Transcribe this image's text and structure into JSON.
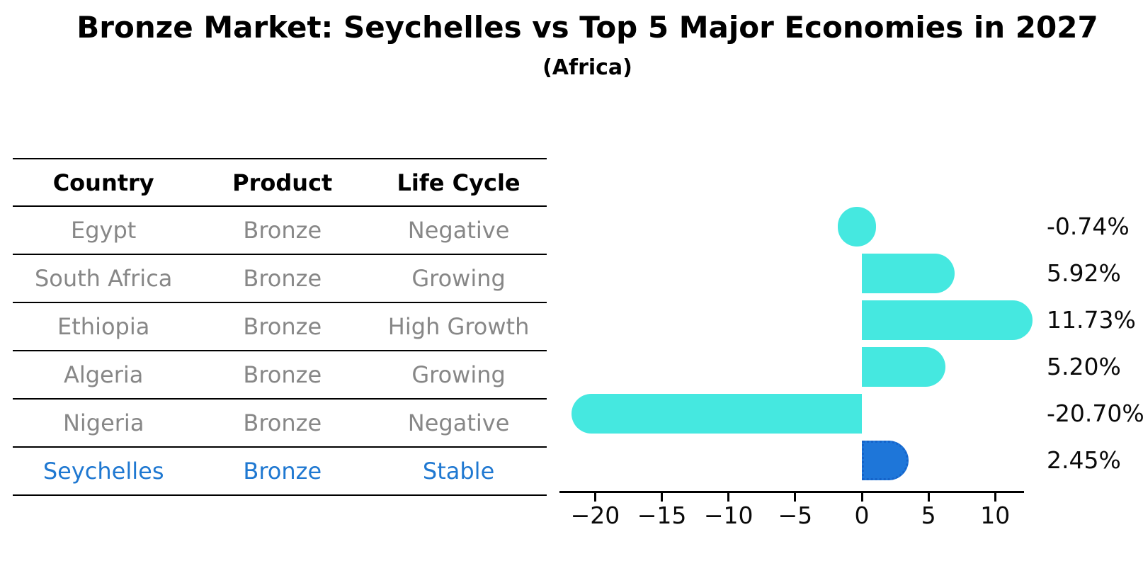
{
  "chart_data": {
    "type": "bar",
    "orientation": "horizontal",
    "title": "Bronze Market: Seychelles vs Top 5 Major Economies in 2027",
    "subtitle": "(Africa)",
    "categories": [
      "Egypt",
      "South Africa",
      "Ethiopia",
      "Algeria",
      "Nigeria",
      "Seychelles"
    ],
    "values": [
      -0.74,
      5.92,
      11.73,
      5.2,
      -20.7,
      2.45
    ],
    "value_labels": [
      "-0.74%",
      "5.92%",
      "11.73%",
      "5.20%",
      "-20.70%",
      "2.45%"
    ],
    "highlight_index": 5,
    "x_ticks": [
      -20,
      -15,
      -10,
      -5,
      0,
      5,
      10
    ],
    "x_tick_labels": [
      "−20",
      "−15",
      "−10",
      "−5",
      "0",
      "5",
      "10"
    ],
    "xlim": [
      -22.7,
      12.2
    ],
    "grid": false,
    "legend": false,
    "value_label_position": "right"
  },
  "table": {
    "headers": [
      "Country",
      "Product",
      "Life Cycle"
    ],
    "rows": [
      {
        "country": "Egypt",
        "product": "Bronze",
        "life_cycle": "Negative",
        "highlight": false
      },
      {
        "country": "South Africa",
        "product": "Bronze",
        "life_cycle": "Growing",
        "highlight": false
      },
      {
        "country": "Ethiopia",
        "product": "Bronze",
        "life_cycle": "High Growth",
        "highlight": false
      },
      {
        "country": "Algeria",
        "product": "Bronze",
        "life_cycle": "Growing",
        "highlight": false
      },
      {
        "country": "Nigeria",
        "product": "Bronze",
        "life_cycle": "Negative",
        "highlight": false
      },
      {
        "country": "Seychelles",
        "product": "Bronze",
        "life_cycle": "Stable",
        "highlight": true
      }
    ]
  },
  "colors": {
    "bar_default": "#45E8E0",
    "bar_highlight": "#1E76D9",
    "bar_highlight_border": "#1563C9",
    "highlight_text": "#1F78D1",
    "row_text": "#878787",
    "axis": "#000000"
  }
}
